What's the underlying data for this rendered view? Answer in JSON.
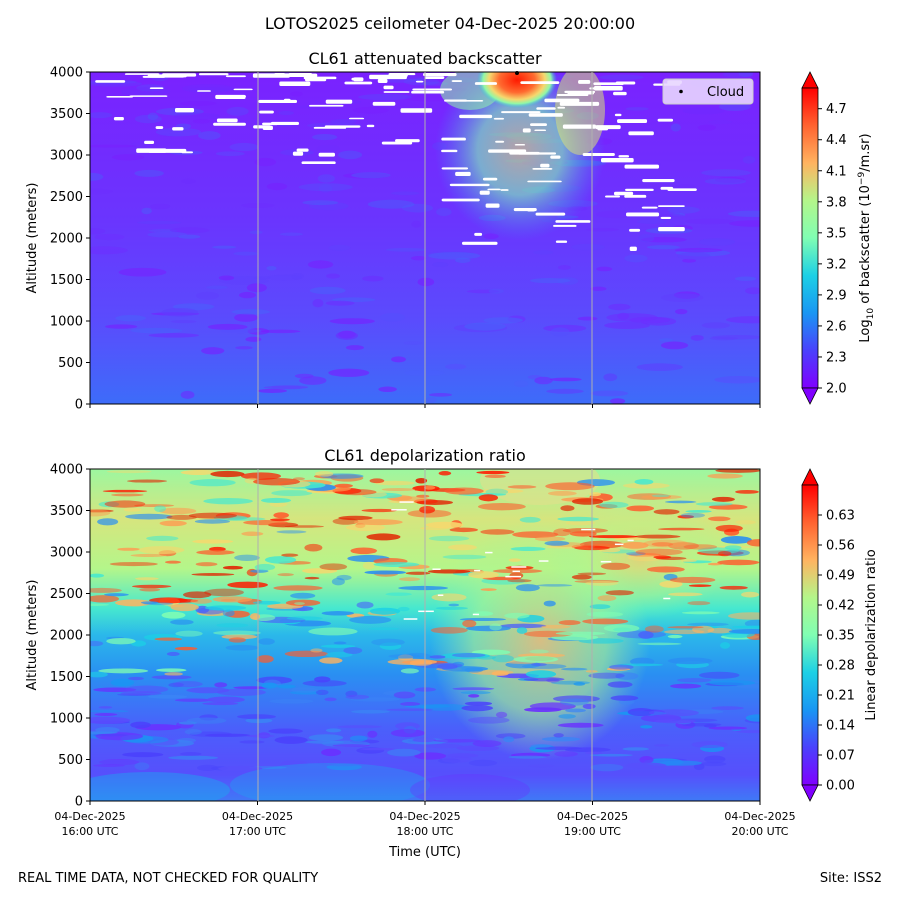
{
  "suptitle": "LOTOS2025 ceilometer 04-Dec-2025 20:00:00",
  "footer": {
    "left": "REAL TIME DATA, NOT CHECKED FOR QUALITY",
    "right": "Site: ISS2"
  },
  "chart_data": [
    {
      "type": "heatmap",
      "title": "CL61 attenuated backscatter",
      "ylabel": "Altitude (meters)",
      "ylim": [
        0,
        4000
      ],
      "yticks": [
        "0",
        "500",
        "1000",
        "1500",
        "2000",
        "2500",
        "3000",
        "3500",
        "4000"
      ],
      "colorbar": {
        "label_main": "Log",
        "label_sub": "10",
        "label_rest": " of backscatter (10",
        "label_sup": "−9",
        "label_end": "/m.sr)",
        "range": [
          2.0,
          4.9
        ],
        "ticks": [
          "2.0",
          "2.3",
          "2.6",
          "2.9",
          "3.2",
          "3.5",
          "3.8",
          "4.1",
          "4.4",
          "4.7"
        ],
        "colormap": "rainbow"
      },
      "legend": {
        "label": "Cloud",
        "placement": "top-right"
      },
      "cloud_points": [
        {
          "time_utc": "18:31",
          "altitude": 4000
        }
      ],
      "description_values": {
        "background_low": 2.2,
        "cloud_top_max": 4.9
      }
    },
    {
      "type": "heatmap",
      "title": "CL61 depolarization ratio",
      "ylabel": "Altitude (meters)",
      "ylim": [
        0,
        4000
      ],
      "yticks": [
        "0",
        "500",
        "1000",
        "1500",
        "2000",
        "2500",
        "3000",
        "3500",
        "4000"
      ],
      "colorbar": {
        "label": "Linear depolarization ratio",
        "range": [
          0.0,
          0.7
        ],
        "ticks": [
          "0.00",
          "0.07",
          "0.14",
          "0.21",
          "0.28",
          "0.35",
          "0.42",
          "0.49",
          "0.56",
          "0.63"
        ],
        "colormap": "rainbow"
      }
    }
  ],
  "xaxis": {
    "label": "Time (UTC)",
    "range": [
      "16:00",
      "20:00"
    ],
    "ticks": [
      {
        "date": "04-Dec-2025",
        "time": "16:00 UTC"
      },
      {
        "date": "04-Dec-2025",
        "time": "17:00 UTC"
      },
      {
        "date": "04-Dec-2025",
        "time": "18:00 UTC"
      },
      {
        "date": "04-Dec-2025",
        "time": "19:00 UTC"
      },
      {
        "date": "04-Dec-2025",
        "time": "20:00 UTC"
      }
    ]
  }
}
